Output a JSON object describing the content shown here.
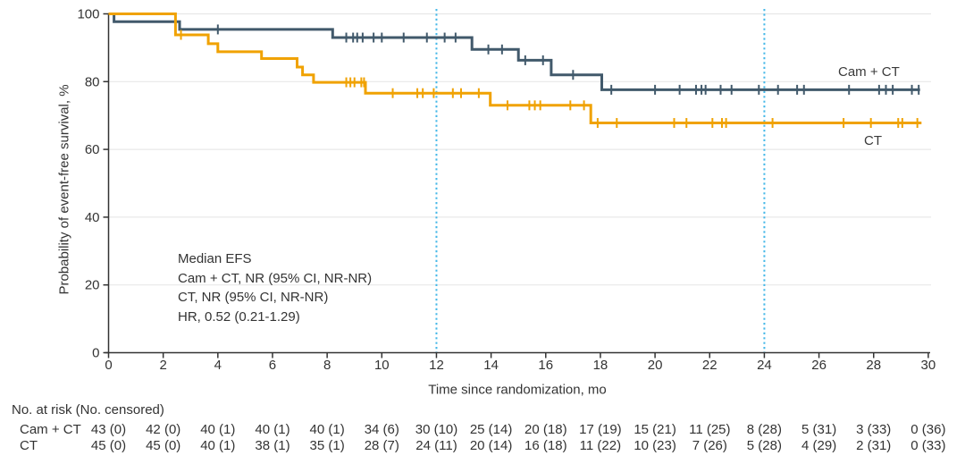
{
  "colors": {
    "cam_ct": "#41596b",
    "ct": "#f0a202",
    "reference_line": "#45b8e8",
    "gridline": "#e8e8e8",
    "axis": "#333333",
    "text": "#333333"
  },
  "chart_data": {
    "type": "line",
    "subtype": "kaplan_meier_step",
    "title": "",
    "xlabel": "Time since randomization, mo",
    "ylabel": "Probability of event-free survival, %",
    "xlim": [
      0,
      30
    ],
    "ylim": [
      0,
      100
    ],
    "x_ticks": [
      0,
      2,
      4,
      6,
      8,
      10,
      12,
      14,
      16,
      18,
      20,
      22,
      24,
      26,
      28,
      30
    ],
    "y_ticks": [
      0,
      20,
      40,
      60,
      80,
      100
    ],
    "grid": "horizontal",
    "legend_position": "end-of-line",
    "reference_lines_x": [
      12,
      24
    ],
    "legend": {
      "cam_ct": "Cam + CT",
      "ct": "CT"
    },
    "annotation": [
      "Median EFS",
      "Cam + CT, NR (95% CI, NR-NR)",
      "CT, NR (95% CI, NR-NR)",
      "HR, 0.52 (0.21-1.29)"
    ],
    "series": [
      {
        "name": "Cam + CT",
        "color_key": "cam_ct",
        "start": [
          0,
          100
        ],
        "steps": [
          [
            0.2,
            97.7
          ],
          [
            2.6,
            95.4
          ],
          [
            8.2,
            93.0
          ],
          [
            13.3,
            89.5
          ],
          [
            15.0,
            86.3
          ],
          [
            16.2,
            82.0
          ],
          [
            18.05,
            77.6
          ]
        ],
        "end_x": 29.7,
        "censor_marks": [
          [
            4.0,
            95.4
          ],
          [
            8.7,
            93.0
          ],
          [
            8.95,
            93.0
          ],
          [
            9.1,
            93.0
          ],
          [
            9.3,
            93.0
          ],
          [
            9.7,
            93.0
          ],
          [
            10.0,
            93.0
          ],
          [
            10.8,
            93.0
          ],
          [
            11.65,
            93.0
          ],
          [
            12.3,
            93.0
          ],
          [
            12.7,
            93.0
          ],
          [
            13.9,
            89.5
          ],
          [
            14.4,
            89.5
          ],
          [
            15.25,
            86.3
          ],
          [
            15.9,
            86.3
          ],
          [
            17.0,
            82.0
          ],
          [
            18.4,
            77.6
          ],
          [
            20.0,
            77.6
          ],
          [
            20.9,
            77.6
          ],
          [
            21.5,
            77.6
          ],
          [
            21.7,
            77.6
          ],
          [
            21.85,
            77.6
          ],
          [
            22.4,
            77.6
          ],
          [
            22.8,
            77.6
          ],
          [
            23.8,
            77.6
          ],
          [
            24.5,
            77.6
          ],
          [
            25.2,
            77.6
          ],
          [
            25.45,
            77.6
          ],
          [
            27.1,
            77.6
          ],
          [
            28.2,
            77.6
          ],
          [
            28.45,
            77.6
          ],
          [
            28.7,
            77.6
          ],
          [
            29.4,
            77.6
          ],
          [
            29.65,
            77.6
          ]
        ]
      },
      {
        "name": "CT",
        "color_key": "ct",
        "start": [
          0,
          100
        ],
        "steps": [
          [
            2.45,
            93.8
          ],
          [
            3.65,
            91.2
          ],
          [
            4.0,
            88.8
          ],
          [
            5.6,
            86.8
          ],
          [
            6.9,
            84.3
          ],
          [
            7.1,
            82.0
          ],
          [
            7.5,
            79.8
          ],
          [
            9.4,
            76.6
          ],
          [
            13.97,
            73.0
          ],
          [
            17.65,
            67.8
          ]
        ],
        "end_x": 29.75,
        "censor_marks": [
          [
            2.65,
            93.8
          ],
          [
            8.7,
            79.8
          ],
          [
            8.85,
            79.8
          ],
          [
            9.0,
            79.8
          ],
          [
            9.25,
            79.8
          ],
          [
            9.35,
            79.8
          ],
          [
            10.4,
            76.6
          ],
          [
            11.3,
            76.6
          ],
          [
            11.5,
            76.6
          ],
          [
            11.9,
            76.6
          ],
          [
            12.6,
            76.6
          ],
          [
            12.9,
            76.6
          ],
          [
            13.55,
            76.6
          ],
          [
            14.6,
            73.0
          ],
          [
            15.4,
            73.0
          ],
          [
            15.6,
            73.0
          ],
          [
            15.8,
            73.0
          ],
          [
            16.9,
            73.0
          ],
          [
            17.4,
            73.0
          ],
          [
            17.9,
            67.8
          ],
          [
            18.6,
            67.8
          ],
          [
            20.7,
            67.8
          ],
          [
            21.15,
            67.8
          ],
          [
            22.1,
            67.8
          ],
          [
            22.45,
            67.8
          ],
          [
            22.6,
            67.8
          ],
          [
            24.3,
            67.8
          ],
          [
            26.9,
            67.8
          ],
          [
            27.9,
            67.8
          ],
          [
            28.9,
            67.8
          ],
          [
            29.05,
            67.8
          ],
          [
            29.6,
            67.8
          ]
        ]
      }
    ]
  },
  "risk_table": {
    "header": "No. at risk (No. censored)",
    "times": [
      0,
      2,
      4,
      6,
      8,
      10,
      12,
      14,
      16,
      18,
      20,
      22,
      24,
      26,
      28,
      30
    ],
    "rows": [
      {
        "label": "Cam + CT",
        "values": [
          "43 (0)",
          "42 (0)",
          "40 (1)",
          "40 (1)",
          "40 (1)",
          "34 (6)",
          "30 (10)",
          "25 (14)",
          "20 (18)",
          "17 (19)",
          "15 (21)",
          "11 (25)",
          "8 (28)",
          "5 (31)",
          "3 (33)",
          "0 (36)"
        ]
      },
      {
        "label": "CT",
        "values": [
          "45 (0)",
          "45 (0)",
          "40 (1)",
          "38 (1)",
          "35 (1)",
          "28 (7)",
          "24 (11)",
          "20 (14)",
          "16 (18)",
          "11 (22)",
          "10 (23)",
          "7 (26)",
          "5 (28)",
          "4 (29)",
          "2 (31)",
          "0 (33)"
        ]
      }
    ]
  }
}
